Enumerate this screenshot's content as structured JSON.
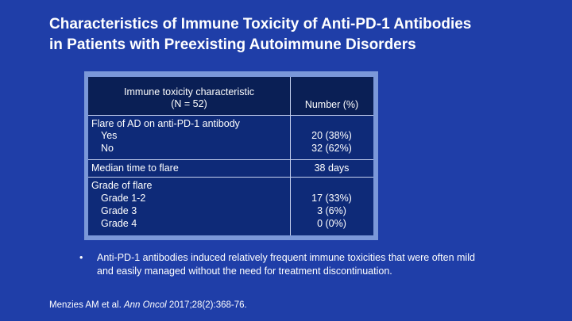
{
  "title": {
    "line1": "Characteristics of Immune Toxicity of Anti-PD-1 Antibodies",
    "line2": "in Patients with Preexisting Autoimmune Disorders"
  },
  "table": {
    "header": {
      "characteristic_line1": "Immune toxicity characteristic",
      "characteristic_line2": "(N = 52)",
      "number": "Number (%)"
    },
    "groups": [
      {
        "label": "Flare of AD on anti-PD-1 antibody",
        "rows": [
          {
            "label": "Yes",
            "value": "20 (38%)"
          },
          {
            "label": "No",
            "value": "32 (62%)"
          }
        ]
      },
      {
        "label": "Median time to flare",
        "value": "38 days"
      },
      {
        "label": "Grade of flare",
        "rows": [
          {
            "label": "Grade 1-2",
            "value": "17 (33%)"
          },
          {
            "label": "Grade 3",
            "value": "3 (6%)"
          },
          {
            "label": "Grade 4",
            "value": "0 (0%)"
          }
        ]
      }
    ]
  },
  "bullet": {
    "marker": "•",
    "line1": "Anti-PD-1 antibodies induced relatively frequent immune toxicities that were often mild",
    "line2": "and easily managed without the need for treatment discontinuation."
  },
  "citation": {
    "authors": "Menzies AM et al.",
    "journal": "Ann Oncol",
    "details": "2017;28(2):368-76."
  },
  "colors": {
    "background": "#1f3ea8",
    "table_frame": "#7b98d9",
    "table_body": "#0e2a78",
    "table_header": "#0a1f55"
  }
}
